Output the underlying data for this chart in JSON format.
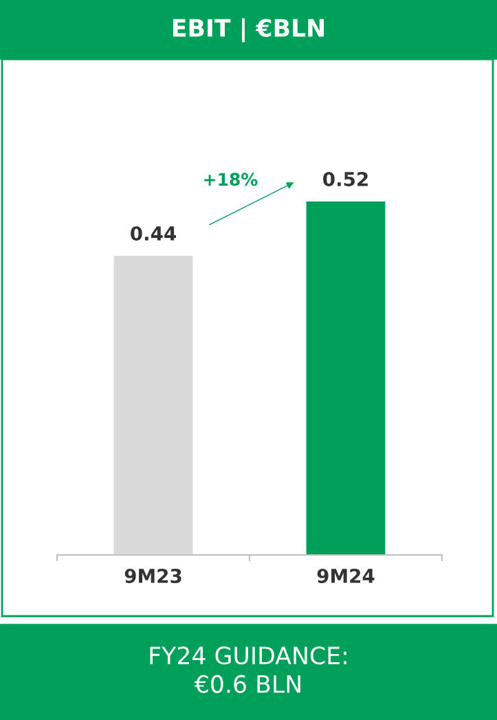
{
  "chart_data": {
    "type": "bar",
    "title": "EBIT | €BLN",
    "categories": [
      "9M23",
      "9M24"
    ],
    "values": [
      0.44,
      0.52
    ],
    "colors": [
      "#d9d9d9",
      "#00a05a"
    ],
    "data_labels": true,
    "annotations": [
      "+18%",
      "FY24 GUIDANCE:\n€0.6 BLN"
    ]
  }
}
